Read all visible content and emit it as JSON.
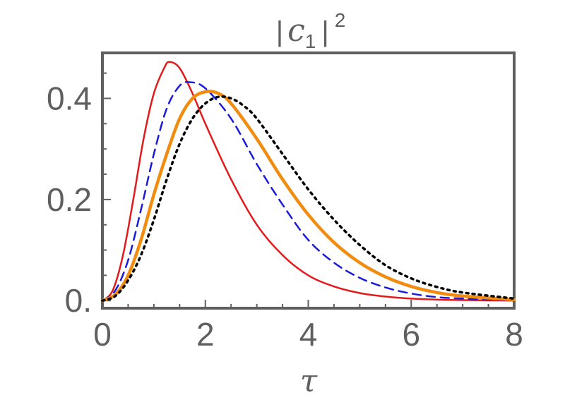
{
  "chart_data": {
    "type": "line",
    "title_parts": {
      "open_bar": "|",
      "var": "c",
      "sub": "1",
      "close_bar": "|",
      "sup": "2"
    },
    "xlabel": "τ",
    "ylabel": "",
    "xlim": [
      0,
      8
    ],
    "ylim": [
      -0.015,
      0.49
    ],
    "grid": false,
    "x_ticks": [
      {
        "value": 0,
        "label": "0"
      },
      {
        "value": 2,
        "label": "2"
      },
      {
        "value": 4,
        "label": "4"
      },
      {
        "value": 6,
        "label": "6"
      },
      {
        "value": 8,
        "label": "8"
      }
    ],
    "y_ticks": [
      {
        "value": 0,
        "label": "0."
      },
      {
        "value": 0.2,
        "label": "0.2"
      },
      {
        "value": 0.4,
        "label": "0.4"
      }
    ],
    "series": [
      {
        "color": "#e31a1c",
        "dash": "solid",
        "weight": "thin",
        "x": [
          0,
          0.2,
          0.4,
          0.6,
          0.8,
          1.0,
          1.2,
          1.3,
          1.5,
          1.75,
          2.0,
          2.5,
          3.0,
          3.5,
          4.0,
          4.5,
          5.0,
          5.5,
          6.0,
          6.5,
          7.0,
          8.0
        ],
        "y": [
          0,
          0.02,
          0.09,
          0.2,
          0.32,
          0.41,
          0.46,
          0.472,
          0.46,
          0.41,
          0.35,
          0.24,
          0.15,
          0.09,
          0.05,
          0.028,
          0.015,
          0.008,
          0.004,
          0.002,
          0.001,
          0
        ]
      },
      {
        "color": "#1a1adb",
        "dash": "dashed",
        "weight": "thin",
        "x": [
          0,
          0.25,
          0.5,
          0.75,
          1.0,
          1.25,
          1.5,
          1.7,
          2.0,
          2.5,
          3.0,
          3.5,
          4.0,
          4.5,
          5.0,
          5.5,
          6.0,
          6.5,
          7.0,
          8.0
        ],
        "y": [
          0,
          0.02,
          0.08,
          0.18,
          0.29,
          0.38,
          0.425,
          0.432,
          0.42,
          0.36,
          0.27,
          0.19,
          0.12,
          0.075,
          0.045,
          0.026,
          0.014,
          0.007,
          0.004,
          0.001
        ]
      },
      {
        "color": "#f28c0f",
        "dash": "solid",
        "weight": "thick",
        "x": [
          0,
          0.25,
          0.5,
          0.75,
          1.0,
          1.25,
          1.5,
          1.75,
          2.0,
          2.25,
          2.5,
          3.0,
          3.5,
          4.0,
          4.5,
          5.0,
          5.5,
          6.0,
          6.5,
          7.0,
          8.0
        ],
        "y": [
          0,
          0.012,
          0.05,
          0.12,
          0.21,
          0.29,
          0.36,
          0.4,
          0.413,
          0.41,
          0.39,
          0.32,
          0.24,
          0.17,
          0.115,
          0.075,
          0.047,
          0.028,
          0.016,
          0.009,
          0.002
        ]
      },
      {
        "color": "#000000",
        "dash": "dotted",
        "weight": "medium",
        "x": [
          0,
          0.25,
          0.5,
          0.75,
          1.0,
          1.25,
          1.5,
          1.75,
          2.0,
          2.25,
          2.5,
          2.75,
          3.0,
          3.5,
          4.0,
          4.5,
          5.0,
          5.5,
          6.0,
          6.5,
          7.0,
          8.0
        ],
        "y": [
          0,
          0.009,
          0.04,
          0.09,
          0.16,
          0.24,
          0.31,
          0.36,
          0.39,
          0.403,
          0.4,
          0.385,
          0.36,
          0.29,
          0.22,
          0.16,
          0.11,
          0.07,
          0.044,
          0.027,
          0.016,
          0.004
        ]
      }
    ]
  }
}
